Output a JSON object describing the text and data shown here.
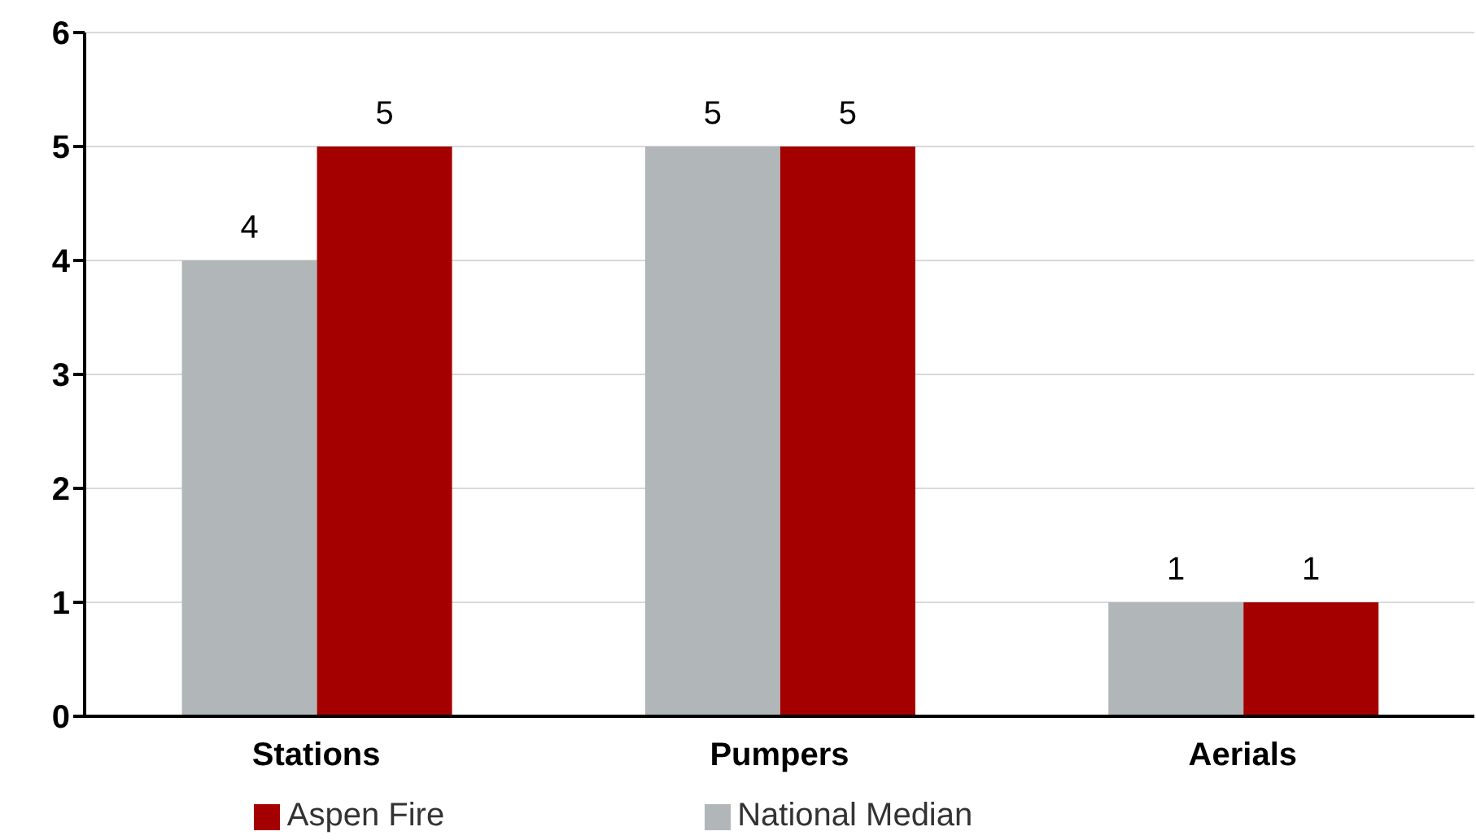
{
  "chart_data": {
    "type": "bar",
    "categories": [
      "Stations",
      "Pumpers",
      "Aerials"
    ],
    "series": [
      {
        "name": "National Median",
        "color": "#b1b6b9",
        "values": [
          4,
          5,
          1
        ]
      },
      {
        "name": "Aspen Fire",
        "color": "#a50000",
        "values": [
          5,
          5,
          1
        ]
      }
    ],
    "ylim": [
      0,
      6
    ],
    "yticks": [
      0,
      1,
      2,
      3,
      4,
      5,
      6
    ],
    "grid": "y",
    "legend": "bottom",
    "data_labels": true
  }
}
